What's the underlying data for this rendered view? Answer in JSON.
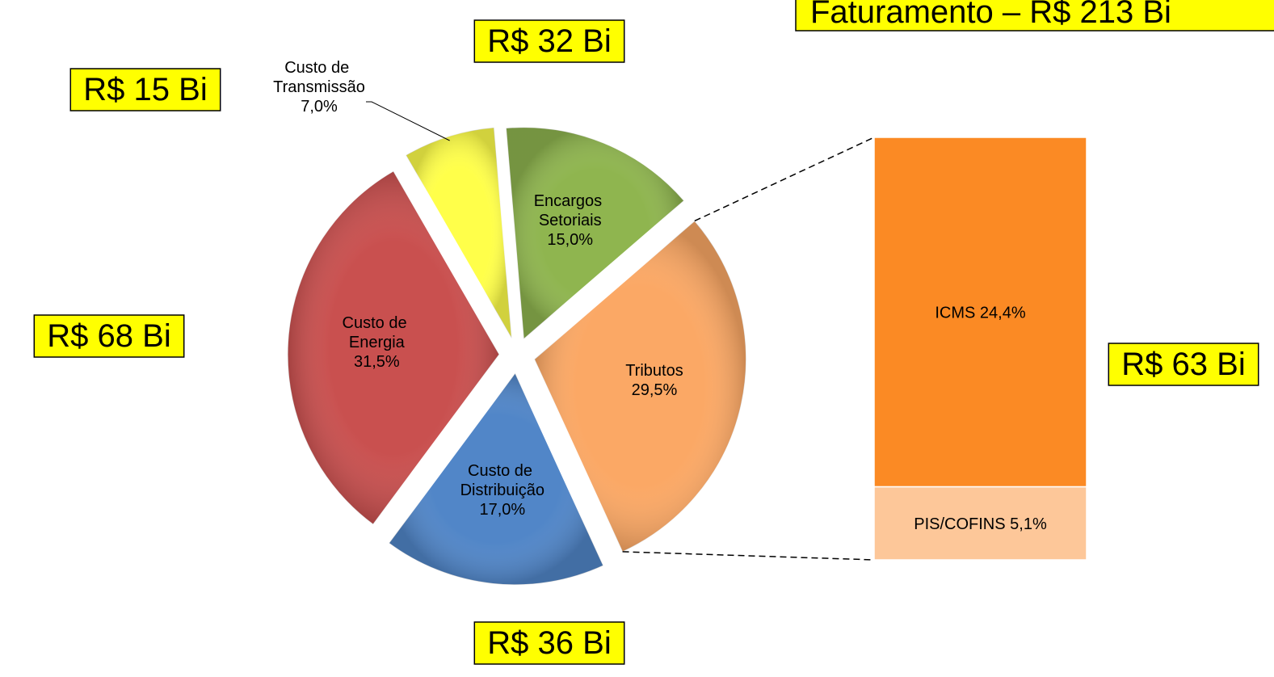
{
  "chart_data": {
    "type": "pie-of-bar",
    "title": "Faturamento – R$ 213 Bi",
    "categories": [
      "Custo de Transmissão",
      "Encargos Setoriais",
      "Tributos",
      "Custo de Distribuição",
      "Custo de Energia"
    ],
    "values": [
      7,
      15,
      29.5,
      17,
      31.5
    ],
    "value_labels": [
      "7,0%",
      "15,0%",
      "29,5%",
      "17,0%",
      "31,5%"
    ],
    "amount_labels": [
      "R$ 15 Bi",
      "R$ 32 Bi",
      "R$ 63 Bi",
      "R$ 36 Bi",
      "R$ 68 Bi"
    ],
    "colors": [
      "#ffff4a",
      "#8fb54f",
      "#fba865",
      "#5186c8",
      "#c9504f"
    ],
    "breakdown": {
      "categories": [
        "ICMS",
        "PIS/COFINS"
      ],
      "values": [
        24.4,
        5.1
      ],
      "value_labels": [
        "24,4%",
        "5,1%"
      ],
      "colors": [
        "#fb8a24",
        "#fdc799"
      ]
    }
  }
}
